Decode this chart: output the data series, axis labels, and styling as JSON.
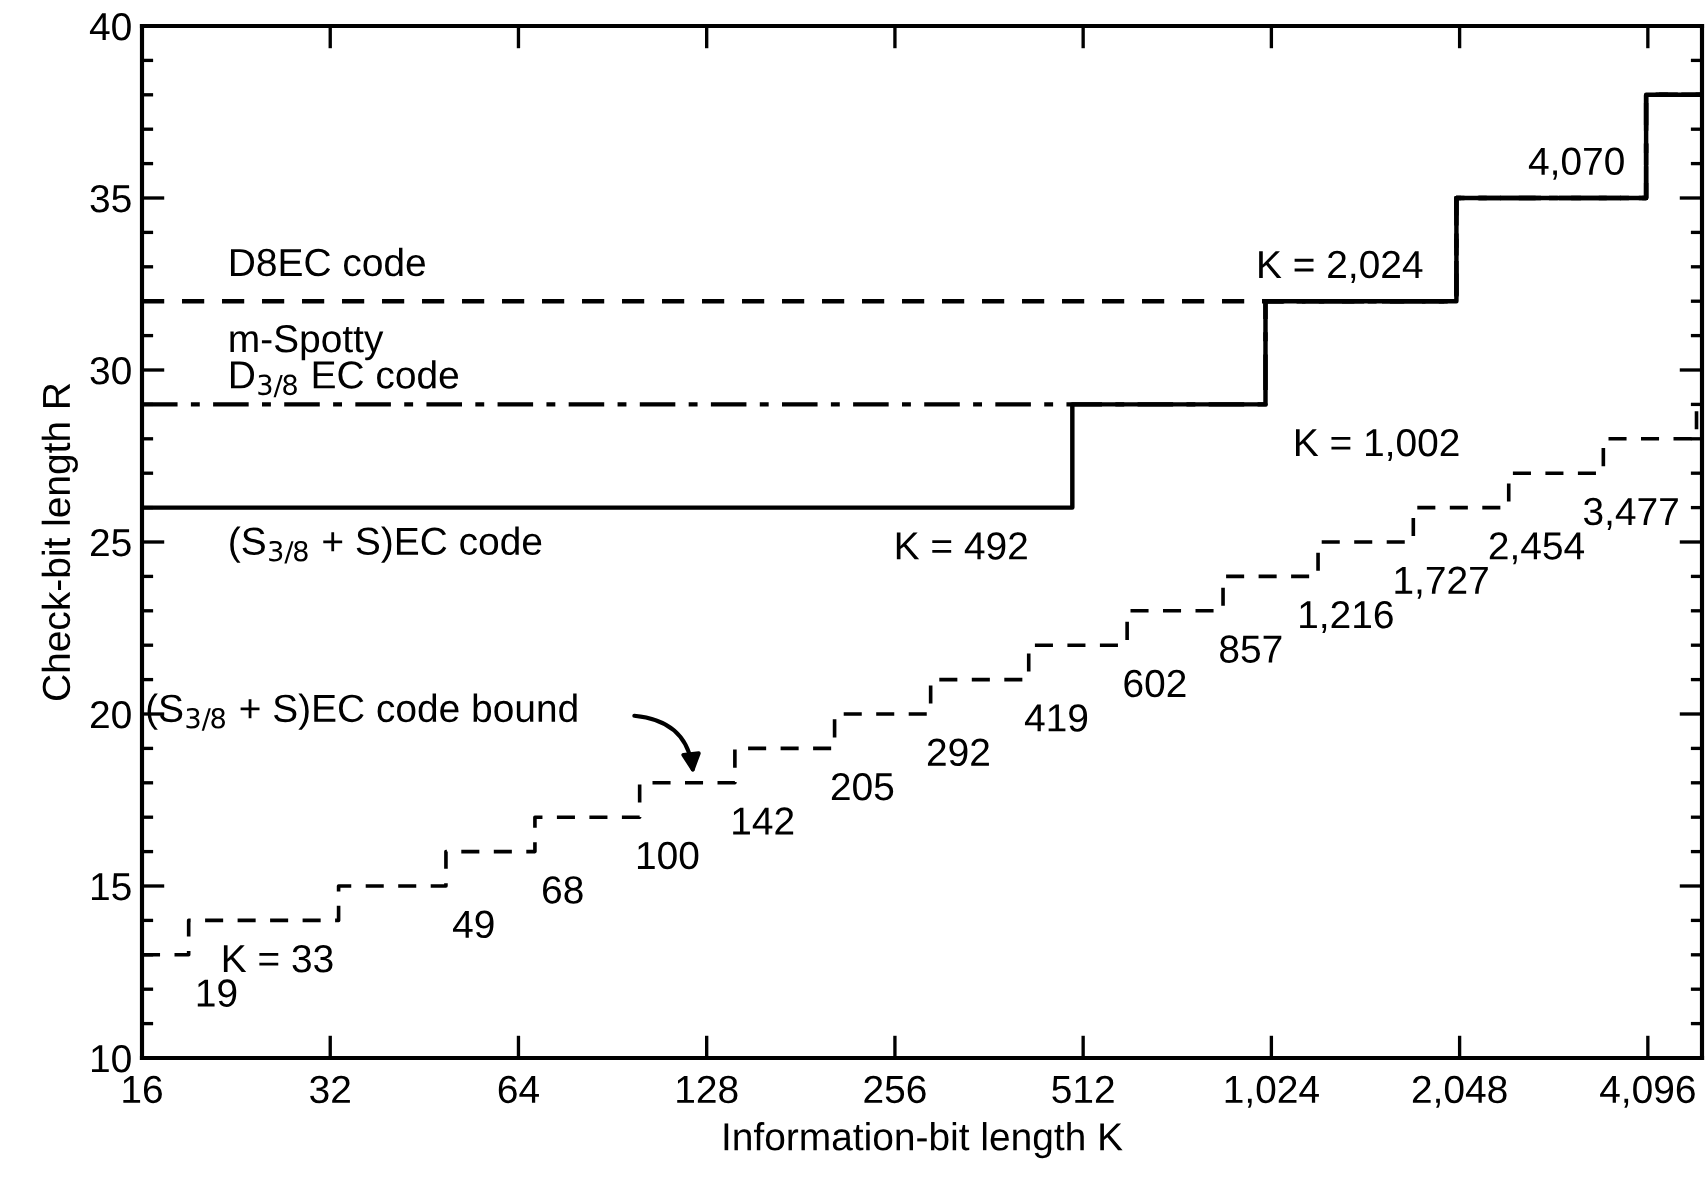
{
  "chart_data": {
    "type": "step",
    "xlabel": "Information-bit length K",
    "ylabel": "Check-bit length R",
    "log": "x",
    "xlim": [
      16,
      5000
    ],
    "ylim": [
      10,
      40
    ],
    "xticks": [
      16,
      32,
      64,
      128,
      256,
      512,
      {
        "value": 1024,
        "label": "1,024"
      },
      {
        "value": 2048,
        "label": "2,048"
      },
      {
        "value": 4096,
        "label": "4,096"
      }
    ],
    "yticks": [
      10,
      15,
      20,
      25,
      30,
      35,
      40
    ],
    "grid": false,
    "legend": false,
    "marker": "none",
    "series": [
      {
        "name": "D8EC code",
        "color": "#000000",
        "line_style": "dashed",
        "x": [
          16,
          2024,
          4070,
          5000
        ],
        "values": [
          32,
          35,
          38,
          38
        ]
      },
      {
        "name": "m-Spotty\nD$_{3/8}$ EC code",
        "color": "#000000",
        "line_style": "dashdot",
        "x": [
          16,
          1002,
          2024,
          4070,
          5000
        ],
        "values": [
          29,
          32,
          35,
          38,
          38
        ]
      },
      {
        "name": "(S$_{3/8}$ + S)EC code",
        "color": "#000000",
        "line_style": "solid",
        "x": [
          16,
          492,
          1002,
          2024,
          4070,
          5000
        ],
        "values": [
          26,
          29,
          32,
          35,
          38,
          38
        ]
      },
      {
        "name": "(S$_{3/8}$ + S)EC code bound",
        "color": "#000000",
        "line_style": "dashed",
        "x": [
          16,
          19,
          33,
          49,
          68,
          100,
          142,
          205,
          292,
          419,
          602,
          857,
          1216,
          1727,
          2454,
          3477,
          4900,
          5000
        ],
        "values": [
          13,
          14,
          15,
          16,
          17,
          18,
          19,
          20,
          21,
          22,
          23,
          24,
          25,
          26,
          27,
          28,
          29,
          29
        ]
      }
    ],
    "annotations": [
      {
        "text": "K = 492",
        "x": 492,
        "y": 26
      },
      {
        "text": "K = 1,002",
        "x": 1002,
        "y": 29
      },
      {
        "text": "K = 2,024",
        "x": 2024,
        "y": 32
      },
      {
        "text": "4,070",
        "x": 4070,
        "y": 35
      },
      {
        "text": "19",
        "x": 19,
        "y": 13
      },
      {
        "text": "K = 33",
        "x": 33,
        "y": 14
      },
      {
        "text": "49",
        "x": 49,
        "y": 15
      },
      {
        "text": "68",
        "x": 68,
        "y": 16
      },
      {
        "text": "100",
        "x": 100,
        "y": 17
      },
      {
        "text": "142",
        "x": 142,
        "y": 18
      },
      {
        "text": "205",
        "x": 205,
        "y": 19
      },
      {
        "text": "292",
        "x": 292,
        "y": 20
      },
      {
        "text": "419",
        "x": 419,
        "y": 21
      },
      {
        "text": "602",
        "x": 602,
        "y": 22
      },
      {
        "text": "857",
        "x": 857,
        "y": 23
      },
      {
        "text": "1,216",
        "x": 1216,
        "y": 24
      },
      {
        "text": "1,727",
        "x": 1727,
        "y": 25
      },
      {
        "text": "2,454",
        "x": 2454,
        "y": 26
      },
      {
        "text": "3,477",
        "x": 3477,
        "y": 27
      }
    ]
  }
}
